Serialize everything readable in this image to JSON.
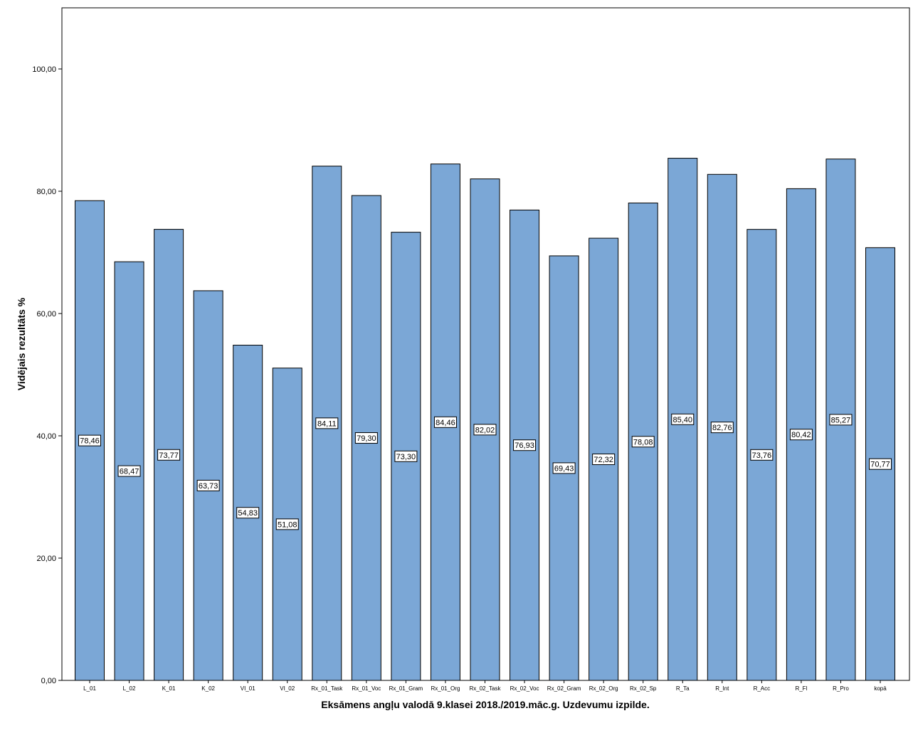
{
  "chart_data": {
    "type": "bar",
    "xlabel": "Eksāmens angļu valodā 9.klasei 2018./2019.māc.g. Uzdevumu izpilde.",
    "ylabel": "Vidējais rezultāts %",
    "ylim": [
      0,
      110
    ],
    "yticks": [
      "0,00",
      "20,00",
      "40,00",
      "60,00",
      "80,00",
      "100,00"
    ],
    "grid": false,
    "categories": [
      "L_01",
      "L_02",
      "K_01",
      "K_02",
      "VI_01",
      "VI_02",
      "Rx_01_Task",
      "Rx_01_Voc",
      "Rx_01_Gram",
      "Rx_01_Org",
      "Rx_02_Task",
      "Rx_02_Voc",
      "Rx_02_Gram",
      "Rx_02_Org",
      "Rx_02_Sp",
      "R_Ta",
      "R_Int",
      "R_Acc",
      "R_Fl",
      "R_Pro",
      "kopā"
    ],
    "values": [
      78.46,
      68.47,
      73.77,
      63.73,
      54.83,
      51.08,
      84.11,
      79.3,
      73.3,
      84.46,
      82.02,
      76.93,
      69.43,
      72.32,
      78.08,
      85.4,
      82.76,
      73.76,
      80.42,
      85.27,
      70.77
    ],
    "value_labels": [
      "78,46",
      "68,47",
      "73,77",
      "63,73",
      "54,83",
      "51,08",
      "84,11",
      "79,30",
      "73,30",
      "84,46",
      "82,02",
      "76,93",
      "69,43",
      "72,32",
      "78,08",
      "85,40",
      "82,76",
      "73,76",
      "80,42",
      "85,27",
      "70,77"
    ],
    "bar_color": "#7BA7D6",
    "bar_edge_color": "#000000"
  }
}
